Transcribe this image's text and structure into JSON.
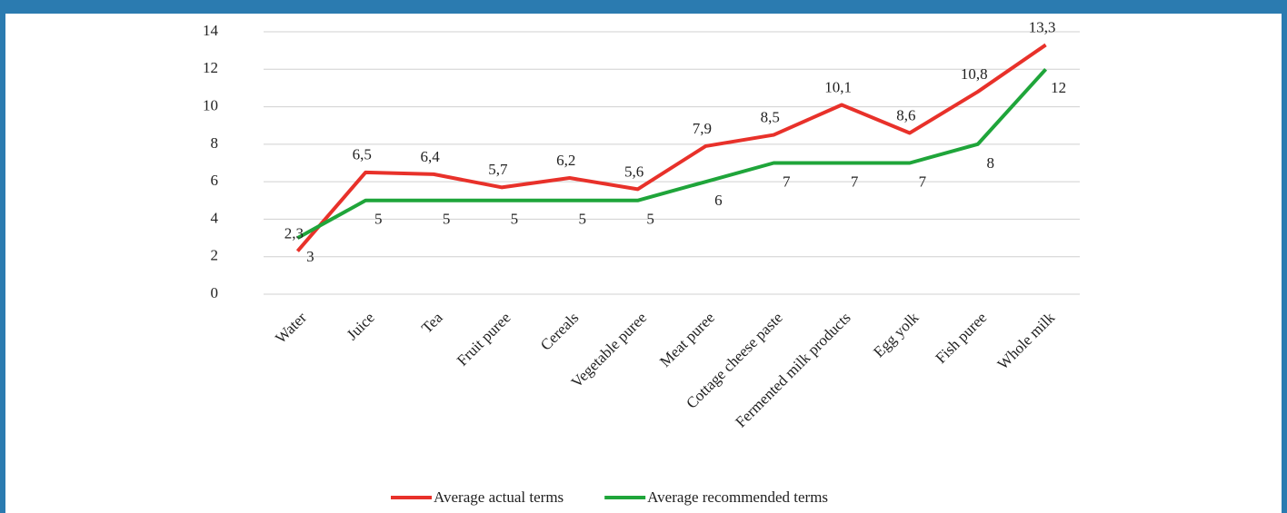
{
  "chart_data": {
    "type": "line",
    "categories": [
      "Water",
      "Juice",
      "Tea",
      "Fruit puree",
      "Cereals",
      "Vegetable puree",
      "Meat puree",
      "Cottage cheese paste",
      "Fermented milk products",
      "Egg yolk",
      "Fish puree",
      "Whole milk"
    ],
    "series": [
      {
        "name": "Average actual terms",
        "color": "#e8312a",
        "values": [
          2.3,
          6.5,
          6.4,
          5.7,
          6.2,
          5.6,
          7.9,
          8.5,
          10.1,
          8.6,
          10.8,
          13.3
        ],
        "value_labels": [
          "2,3",
          "6,5",
          "6,4",
          "5,7",
          "6,2",
          "5,6",
          "7,9",
          "8,5",
          "10,1",
          "8,6",
          "10,8",
          "13,3"
        ]
      },
      {
        "name": "Average recommended terms",
        "color": "#1fa53a",
        "values": [
          3,
          5,
          5,
          5,
          5,
          5,
          6,
          7,
          7,
          7,
          8,
          12
        ]
      }
    ],
    "ylim": [
      0,
      14
    ],
    "yticks": [
      0,
      2,
      4,
      6,
      8,
      10,
      12,
      14
    ],
    "grid": true,
    "legend": "bottom"
  }
}
